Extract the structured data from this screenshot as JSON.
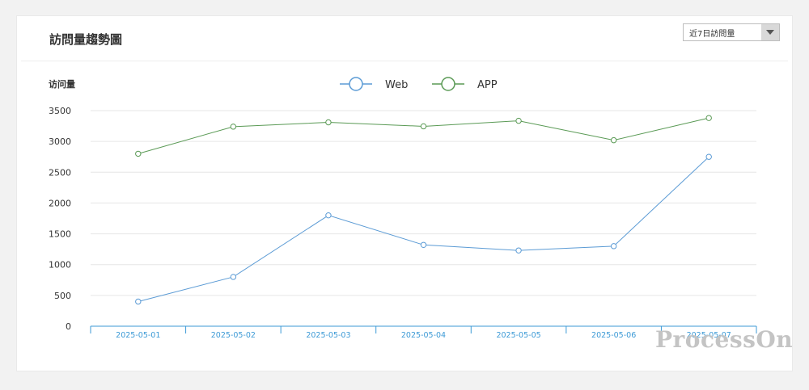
{
  "card": {
    "title": "訪問量趨勢圖",
    "range_select": {
      "value": "近7日訪問量"
    }
  },
  "watermark": "ProcessOn",
  "colors": {
    "web": "#5b9bd5",
    "app": "#5a9a55",
    "axis": "#3c9ad6",
    "grid": "#e6e6e6"
  },
  "chart_data": {
    "type": "line",
    "ylabel": "访问量",
    "ylim": [
      0,
      3500
    ],
    "yticks": [
      0,
      500,
      1000,
      1500,
      2000,
      2500,
      3000,
      3500
    ],
    "categories": [
      "2025-05-01",
      "2025-05-02",
      "2025-05-03",
      "2025-05-04",
      "2025-05-05",
      "2025-05-06",
      "2025-05-07"
    ],
    "legend_position": "top-center",
    "grid": true,
    "series": [
      {
        "name": "Web",
        "color": "#5b9bd5",
        "values": [
          400,
          800,
          1800,
          1320,
          1230,
          1300,
          2750
        ]
      },
      {
        "name": "APP",
        "color": "#5a9a55",
        "values": [
          2800,
          3240,
          3310,
          3245,
          3335,
          3020,
          3380
        ]
      }
    ]
  }
}
